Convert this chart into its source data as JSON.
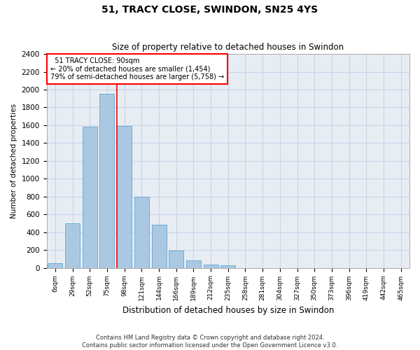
{
  "title": "51, TRACY CLOSE, SWINDON, SN25 4YS",
  "subtitle": "Size of property relative to detached houses in Swindon",
  "xlabel": "Distribution of detached houses by size in Swindon",
  "ylabel": "Number of detached properties",
  "footer_line1": "Contains HM Land Registry data © Crown copyright and database right 2024.",
  "footer_line2": "Contains public sector information licensed under the Open Government Licence v3.0.",
  "categories": [
    "6sqm",
    "29sqm",
    "52sqm",
    "75sqm",
    "98sqm",
    "121sqm",
    "144sqm",
    "166sqm",
    "189sqm",
    "212sqm",
    "235sqm",
    "258sqm",
    "281sqm",
    "304sqm",
    "327sqm",
    "350sqm",
    "373sqm",
    "396sqm",
    "419sqm",
    "442sqm",
    "465sqm"
  ],
  "values": [
    55,
    500,
    1580,
    1950,
    1590,
    800,
    480,
    195,
    85,
    35,
    25,
    0,
    0,
    0,
    0,
    0,
    0,
    0,
    0,
    0,
    0
  ],
  "bar_color": "#abc8e2",
  "bar_edge_color": "#6aaed6",
  "grid_color": "#c8d4e8",
  "background_color": "#e8edf4",
  "annotation_line1": "  51 TRACY CLOSE: 90sqm",
  "annotation_line2": "← 20% of detached houses are smaller (1,454)",
  "annotation_line3": "79% of semi-detached houses are larger (5,758) →",
  "annotation_box_color": "red",
  "red_line_index": 3.55,
  "ylim": [
    0,
    2400
  ],
  "yticks": [
    0,
    200,
    400,
    600,
    800,
    1000,
    1200,
    1400,
    1600,
    1800,
    2000,
    2200,
    2400
  ]
}
